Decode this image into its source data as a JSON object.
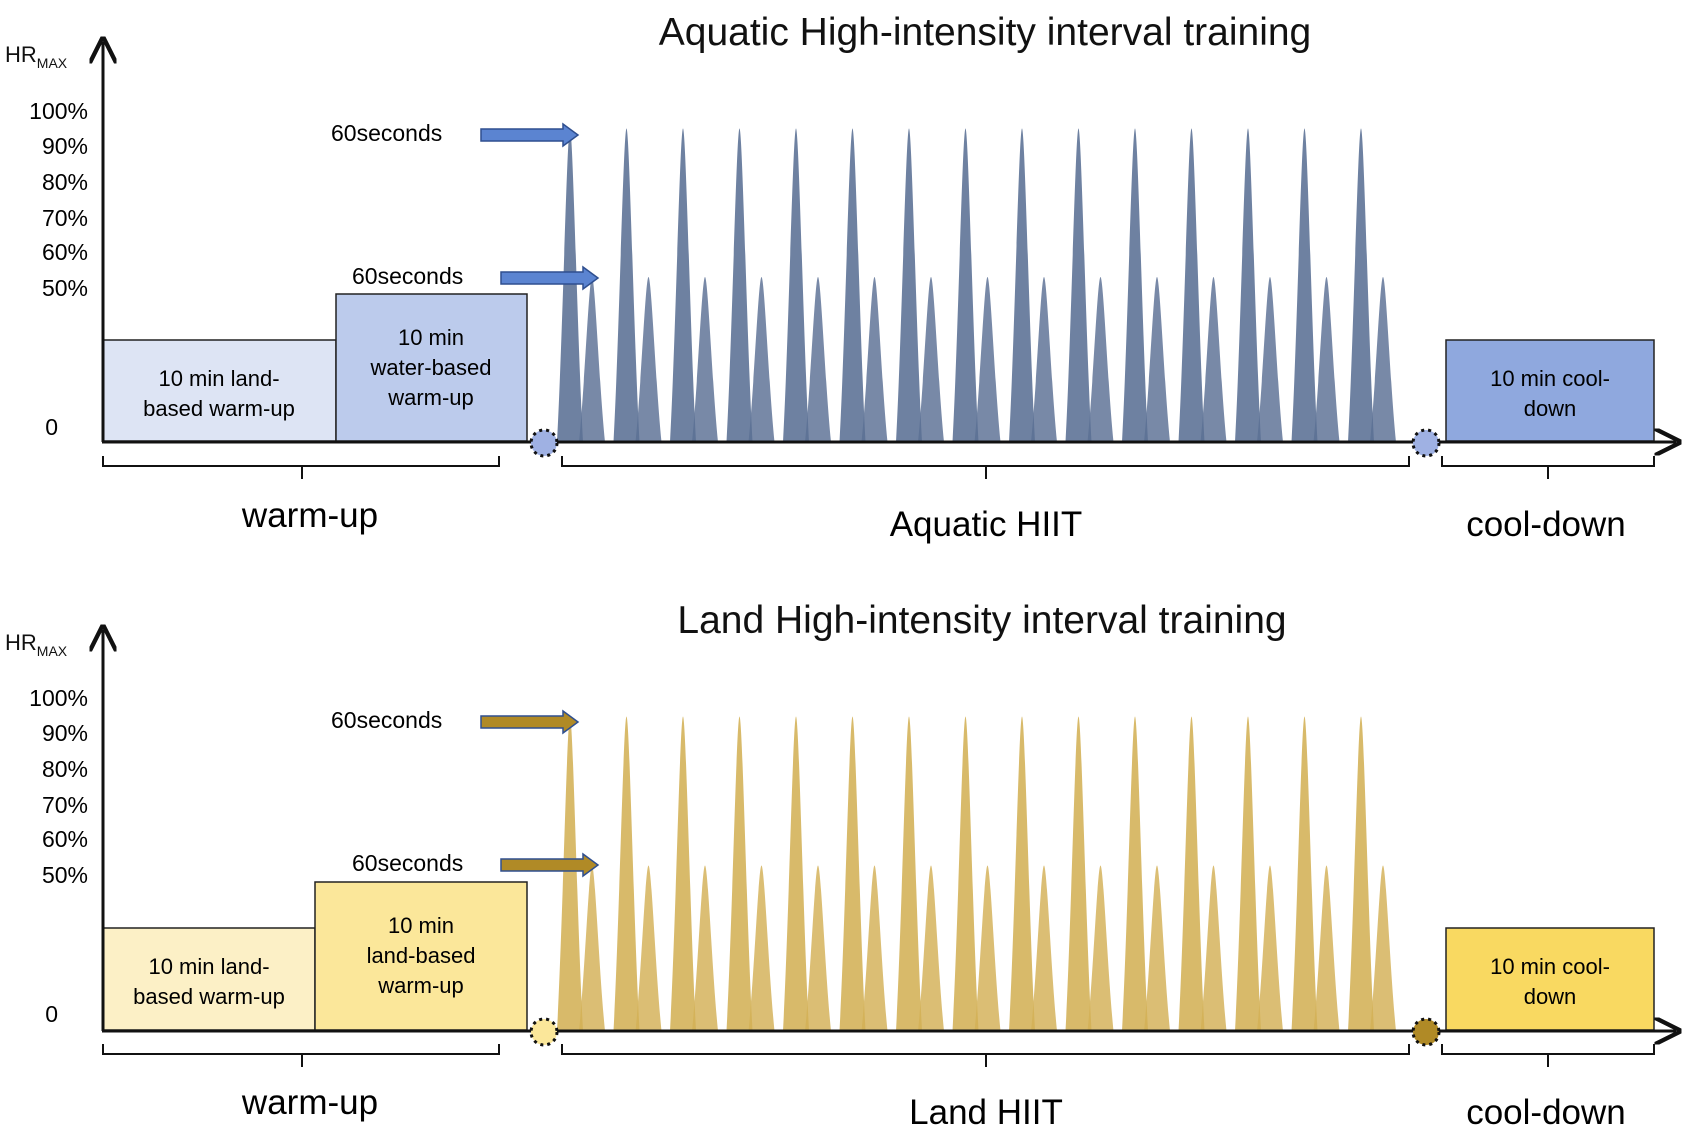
{
  "panels": [
    {
      "id": "aquatic",
      "title": "Aquatic High-intensity interval training",
      "y_axis_label": "HR",
      "y_axis_subscript": "MAX",
      "y_ticks": [
        "100%",
        "90%",
        "80%",
        "70%",
        "60%",
        "50%",
        "0"
      ],
      "arrow_labels": [
        "60seconds",
        "60seconds"
      ],
      "blocks": [
        {
          "lines": [
            "10 min land-",
            "based warm-up"
          ],
          "fill": "#dde4f4",
          "level_pct": 40
        },
        {
          "lines": [
            "10 min",
            "water-based",
            "warm-up"
          ],
          "fill": "#bccbec",
          "level_pct": 45
        },
        {
          "lines": [
            "10 min cool-",
            "down"
          ],
          "fill": "#8fa8de",
          "level_pct": 40
        }
      ],
      "high_peak_pct": 95,
      "low_peak_pct": 50,
      "intervals": 15,
      "peak_color": "#5a6f94",
      "arrow_color": "#5b84d1",
      "marker_color": "#9fb1e3",
      "phases": [
        "warm-up",
        "Aquatic HIIT",
        "cool-down"
      ]
    },
    {
      "id": "land",
      "title": "Land High-intensity interval training",
      "y_axis_label": "HR",
      "y_axis_subscript": "MAX",
      "y_ticks": [
        "100%",
        "90%",
        "80%",
        "70%",
        "60%",
        "50%",
        "0"
      ],
      "arrow_labels": [
        "60seconds",
        "60seconds"
      ],
      "blocks": [
        {
          "lines": [
            "10 min land-",
            "based warm-up"
          ],
          "fill": "#fcf0c6",
          "level_pct": 40
        },
        {
          "lines": [
            "10 min",
            "land-based",
            "warm-up"
          ],
          "fill": "#fbe79a",
          "level_pct": 45
        },
        {
          "lines": [
            "10 min cool-",
            "down"
          ],
          "fill": "#f9d961",
          "level_pct": 40
        }
      ],
      "high_peak_pct": 95,
      "low_peak_pct": 50,
      "intervals": 15,
      "peak_color": "#d3b055",
      "arrow_color": "#b08a26",
      "marker_color": "#b08a26",
      "phases": [
        "warm-up",
        "Land HIIT",
        "cool-down"
      ]
    }
  ]
}
